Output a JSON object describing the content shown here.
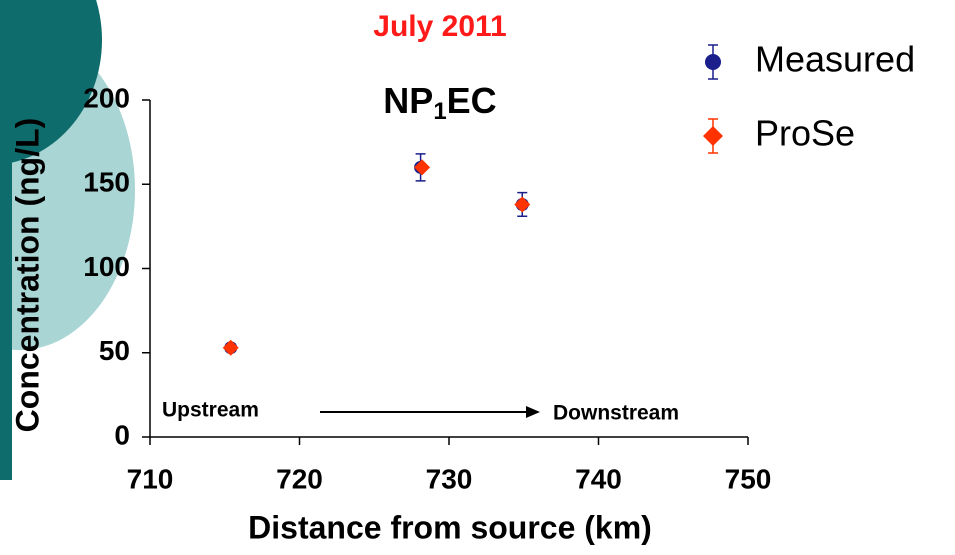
{
  "chart_data": {
    "type": "scatter",
    "title": "July 2011",
    "subtitle_parts": [
      "NP",
      "1",
      "EC"
    ],
    "x_label": "Distance from source (km)",
    "y_label": "Concentration (ng/L)",
    "xlim": [
      710,
      750
    ],
    "xticks": [
      710,
      720,
      730,
      740,
      750
    ],
    "ylim": [
      0,
      200
    ],
    "yticks": [
      0,
      50,
      100,
      150,
      200
    ],
    "legend": "top-right",
    "series": [
      {
        "name": "Measured",
        "color": "#1a1f8c",
        "marker": "circle",
        "x": [
          715.4,
          728.1,
          734.9
        ],
        "values": [
          53,
          160,
          138
        ],
        "errors": [
          2,
          8,
          7
        ]
      },
      {
        "name": "ProSe",
        "color": "#ff3300",
        "marker": "diamond",
        "x": [
          715.4,
          728.2,
          734.9
        ],
        "values": [
          53,
          160,
          138
        ]
      }
    ],
    "annotations": [
      "Upstream",
      "Downstream"
    ]
  }
}
